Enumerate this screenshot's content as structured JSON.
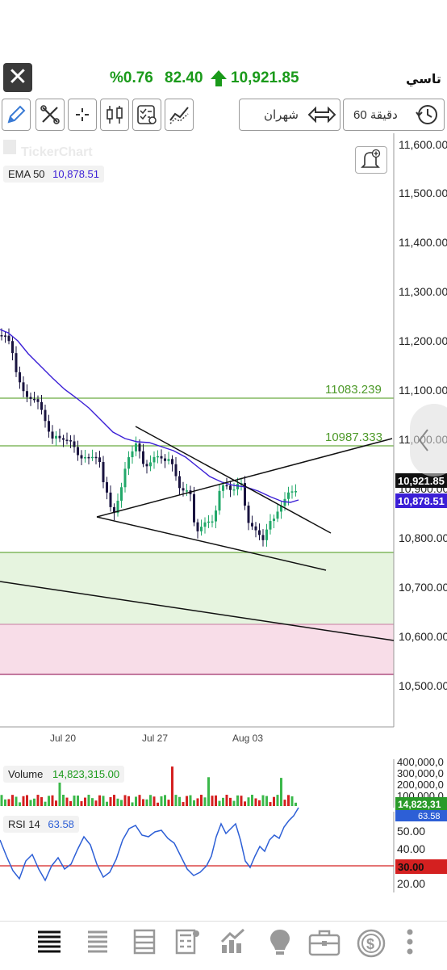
{
  "header": {
    "symbol": "تاسي",
    "last_price": "10,921.85",
    "change_value": "82.40",
    "change_percent": "%0.76",
    "direction": "up",
    "up_color": "#1a9a1a"
  },
  "toolbar": {
    "period_label": "60 دقيقة",
    "range_label": "شهران",
    "tools": [
      "pencil-icon",
      "tools-icon",
      "crosshair-icon",
      "candlestick-icon",
      "indicators-icon",
      "compare-icon"
    ]
  },
  "chart": {
    "watermark": "TickerChart",
    "ema_label": "EMA  50",
    "ema_value": "10,878.51",
    "ema_color": "#3b1fd6",
    "price_ticks": [
      "11,600.00",
      "11,500.00",
      "11,400.00",
      "11,300.00",
      "11,200.00",
      "11,100.00",
      "11,000.00",
      "10,900.00",
      "10,800.00",
      "10,700.00",
      "10,600.00",
      "10,500.00"
    ],
    "date_ticks": [
      "Jul 20",
      "Jul 27",
      "Aug 03"
    ],
    "level_labels": [
      "11083.239",
      "10987.333"
    ],
    "last_price_tag": "10,921.85",
    "ema_tag": "10,878.51",
    "volume_label": "Volume",
    "volume_value": "14,823,315.00",
    "volume_ticks": [
      "400,000,0",
      "300,000,0",
      "200,000,0",
      "100,000,0"
    ],
    "volume_tag": "14,823,31",
    "rsi_label": "RSI  14",
    "rsi_value": "63.58",
    "rsi_ticks": [
      "50.00",
      "40.00",
      "20.00"
    ],
    "rsi_tag": "63.58",
    "rsi_level_tag": "30.00",
    "zones": {
      "green": "#e6f4df",
      "pink": "#f8dde8",
      "line_green": "#6aab40"
    }
  },
  "tabs": [
    "list-icon",
    "watchlist-icon",
    "orders-icon",
    "calculator-icon",
    "chart-icon",
    "idea-icon",
    "portfolio-icon",
    "currency-icon",
    "more-icon"
  ]
}
